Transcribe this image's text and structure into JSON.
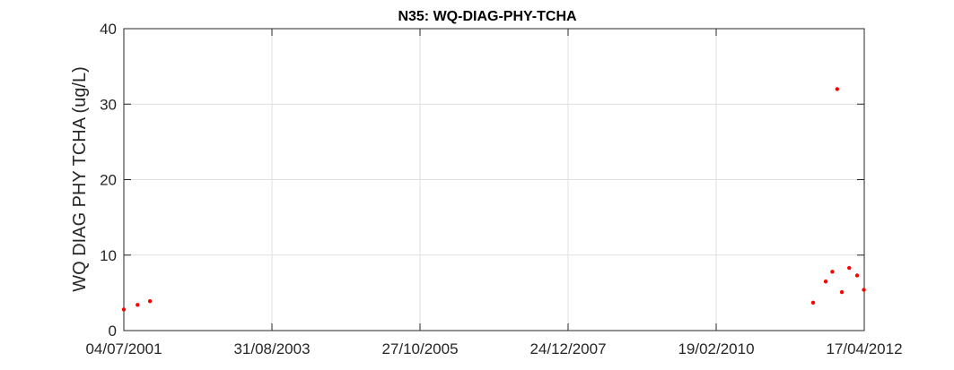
{
  "chart_data": {
    "type": "scatter",
    "title": "N35: WQ-DIAG-PHY-TCHA",
    "xlabel": "",
    "ylabel": "WQ DIAG PHY TCHA (ug/L)",
    "x_ticks": [
      "04/07/2001",
      "31/08/2003",
      "27/10/2005",
      "24/12/2007",
      "19/02/2010",
      "17/04/2012"
    ],
    "xlim": [
      "2001-07-04",
      "2012-04-17"
    ],
    "ylim": [
      0,
      40
    ],
    "y_ticks": [
      0,
      10,
      20,
      30,
      40
    ],
    "grid": true,
    "legend": "none",
    "series": [
      {
        "color": "#ff0000",
        "points": [
          {
            "x": "2001-07-04",
            "y": 2.8
          },
          {
            "x": "2001-09-15",
            "y": 3.4
          },
          {
            "x": "2001-11-20",
            "y": 3.9
          },
          {
            "x": "2011-07-20",
            "y": 3.7
          },
          {
            "x": "2011-09-25",
            "y": 6.5
          },
          {
            "x": "2011-10-30",
            "y": 7.8
          },
          {
            "x": "2011-11-25",
            "y": 32.0
          },
          {
            "x": "2011-12-20",
            "y": 5.1
          },
          {
            "x": "2012-01-28",
            "y": 8.3
          },
          {
            "x": "2012-03-10",
            "y": 7.3
          },
          {
            "x": "2012-04-15",
            "y": 5.4
          }
        ]
      }
    ]
  }
}
